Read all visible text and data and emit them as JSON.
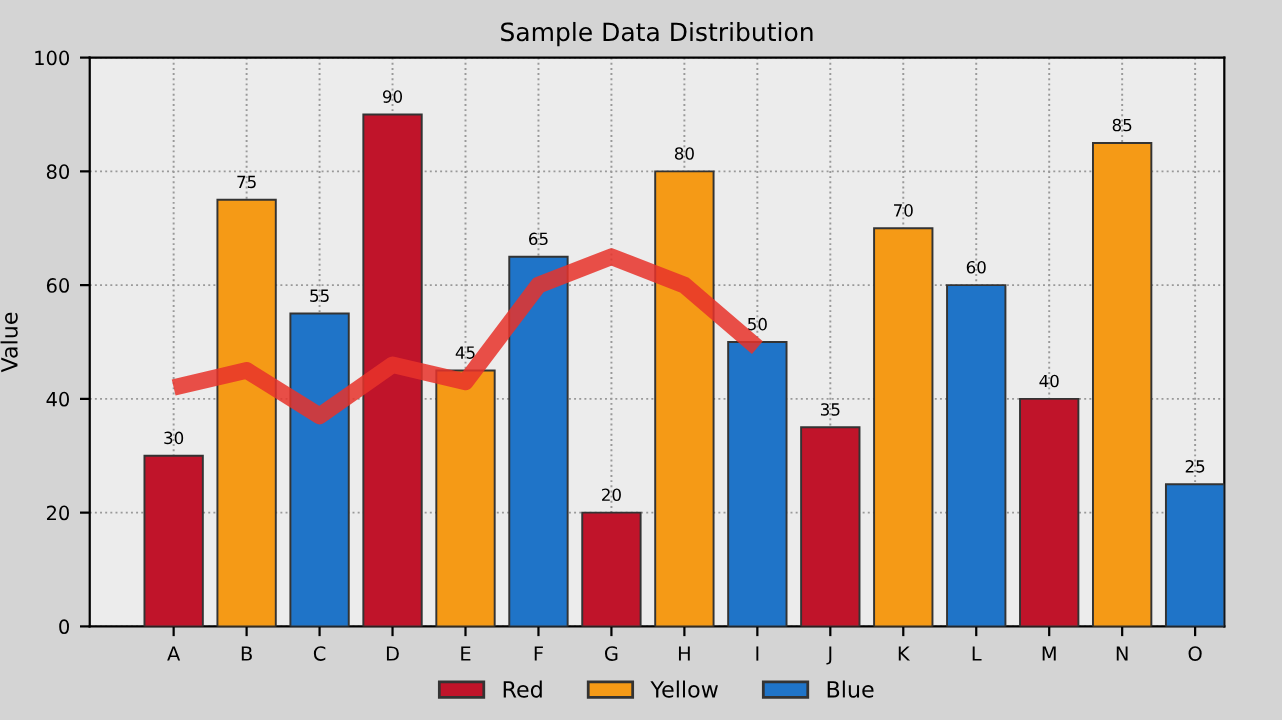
{
  "chart_data": {
    "type": "bar",
    "title": "Sample Data Distribution",
    "ylabel": "Value",
    "categories": [
      "A",
      "B",
      "C",
      "D",
      "E",
      "F",
      "G",
      "H",
      "I",
      "J",
      "K",
      "L",
      "M",
      "N",
      "O"
    ],
    "series": [
      {
        "name": "Red",
        "color": "#c0142a",
        "values": [
          30,
          null,
          null,
          90,
          null,
          null,
          20,
          null,
          null,
          35,
          null,
          null,
          40,
          null,
          null
        ],
        "value_labels": [
          "30",
          null,
          null,
          "90",
          null,
          null,
          "20",
          null,
          null,
          "35",
          null,
          null,
          "40",
          null,
          null
        ]
      },
      {
        "name": "Yellow",
        "color": "#f59a16",
        "values": [
          null,
          75,
          null,
          null,
          45,
          null,
          null,
          80,
          null,
          null,
          70,
          null,
          null,
          85,
          null
        ],
        "value_labels": [
          null,
          "75",
          null,
          null,
          "45",
          null,
          null,
          "80",
          null,
          null,
          "70",
          null,
          null,
          "85",
          null
        ]
      },
      {
        "name": "Blue",
        "color": "#1f74c8",
        "values": [
          null,
          null,
          55,
          null,
          null,
          65,
          null,
          null,
          50,
          null,
          null,
          60,
          null,
          null,
          25
        ],
        "value_labels": [
          null,
          null,
          "55",
          null,
          null,
          "65",
          null,
          null,
          "50",
          null,
          null,
          "60",
          null,
          null,
          "25"
        ]
      },
      {
        "type": "line",
        "color": "#e8322a",
        "values": [
          42,
          45,
          37,
          46,
          43,
          60,
          65,
          60,
          49,
          null,
          null,
          null,
          null,
          null,
          null
        ]
      }
    ],
    "ylim": [
      0,
      100
    ],
    "yticks": [
      0,
      20,
      40,
      60,
      80,
      100
    ],
    "grid": true,
    "legend": "bottom"
  }
}
